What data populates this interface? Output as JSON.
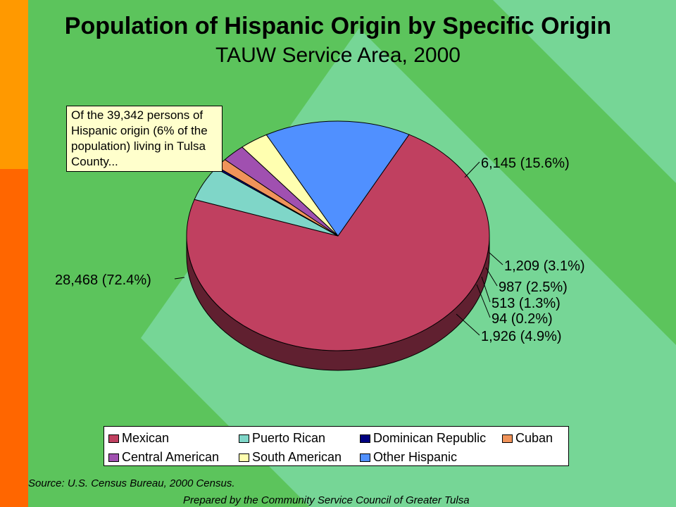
{
  "title": "Population of Hispanic Origin by Specific Origin",
  "subtitle": "TAUW Service Area, 2000",
  "callout": "Of the 39,342 persons of Hispanic origin (6% of the population) living in Tulsa County...",
  "source": "Source:  U.S. Census Bureau, 2000 Census.",
  "prepared_by": "Prepared by the Community Service Council of Greater Tulsa",
  "colors": {
    "background": "#5cc45c",
    "band_top": "#ff9900",
    "band_bottom": "#ff6600",
    "diamond": "#7ad9a0"
  },
  "chart_data": {
    "type": "pie",
    "style": "3d",
    "legend_position": "bottom",
    "series": [
      {
        "name": "Mexican",
        "value": 28468,
        "label": "28,468  (72.4%)",
        "color": "#c04060"
      },
      {
        "name": "Puerto Rican",
        "value": 1926,
        "label": "1,926  (4.9%)",
        "color": "#7fd6c8"
      },
      {
        "name": "Dominican Republic",
        "value": 94,
        "label": "94  (0.2%)",
        "color": "#00007f"
      },
      {
        "name": "Cuban",
        "value": 513,
        "label": "513  (1.3%)",
        "color": "#f0935a"
      },
      {
        "name": "Central American",
        "value": 987,
        "label": "987  (2.5%)",
        "color": "#a050b0"
      },
      {
        "name": "South American",
        "value": 1209,
        "label": "1,209  (3.1%)",
        "color": "#ffffb0"
      },
      {
        "name": "Other Hispanic",
        "value": 6145,
        "label": "6,145  (15.6%)",
        "color": "#5090ff"
      }
    ]
  }
}
